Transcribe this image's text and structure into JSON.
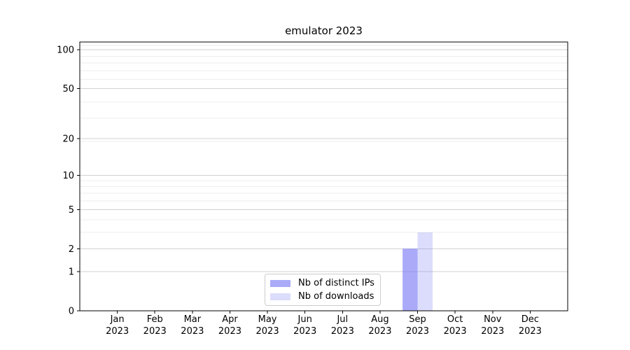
{
  "chart_data": {
    "type": "bar",
    "title": "emulator 2023",
    "categories": [
      "Jan 2023",
      "Feb 2023",
      "Mar 2023",
      "Apr 2023",
      "May 2023",
      "Jun 2023",
      "Jul 2023",
      "Aug 2023",
      "Sep 2023",
      "Oct 2023",
      "Nov 2023",
      "Dec 2023"
    ],
    "x_tick_line1": [
      "Jan",
      "Feb",
      "Mar",
      "Apr",
      "May",
      "Jun",
      "Jul",
      "Aug",
      "Sep",
      "Oct",
      "Nov",
      "Dec"
    ],
    "x_tick_line2": "2023",
    "series": [
      {
        "name": "Nb of distinct IPs",
        "color": "rgba(114,114,245,0.60)",
        "values": [
          0,
          0,
          0,
          0,
          0,
          0,
          0,
          0,
          2,
          0,
          0,
          0
        ]
      },
      {
        "name": "Nb of downloads",
        "color": "rgba(114,114,245,0.25)",
        "values": [
          0,
          0,
          0,
          0,
          0,
          0,
          0,
          0,
          3,
          0,
          0,
          0
        ]
      }
    ],
    "xlabel": "",
    "ylabel": "",
    "yscale": "log1p",
    "ylim": [
      0,
      115
    ],
    "yticks": [
      0,
      1,
      2,
      5,
      10,
      20,
      50,
      100
    ],
    "minor_gridline_values": [
      3,
      4,
      6,
      7,
      8,
      9,
      19,
      29,
      39,
      59,
      69,
      79,
      89,
      109
    ],
    "grid": {
      "axis": "y",
      "major_color": "#d2d2d2",
      "minor_color": "#ededed"
    },
    "bar_width_fraction": 0.4,
    "legend_location": "lower center inside plot"
  },
  "colors": {
    "background": "#ffffff",
    "spine": "#000000",
    "text": "#000000",
    "legend_border": "#cccccc"
  }
}
